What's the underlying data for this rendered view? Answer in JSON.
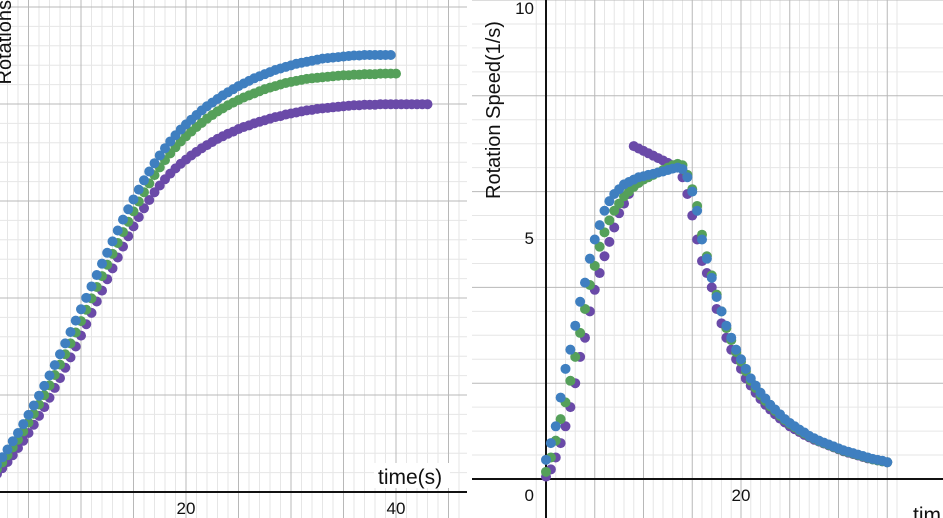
{
  "chart_data": [
    {
      "type": "scatter",
      "ylabel": "Rotations",
      "xlabel": "time(s)",
      "x_ticks": [
        "20",
        "40"
      ],
      "xlim": [
        -1,
        46
      ],
      "ylim": [
        0,
        10
      ],
      "grid": true,
      "series": [
        {
          "color": "#3f7fc0",
          "x": [
            0,
            0.5,
            1,
            1.5,
            2,
            2.5,
            3,
            3.5,
            4,
            4.5,
            5,
            5.5,
            6,
            6.5,
            7,
            7.5,
            8,
            8.5,
            9,
            9.5,
            10,
            10.5,
            11,
            11.5,
            12,
            12.5,
            13,
            13.5,
            14,
            14.5,
            15,
            15.5,
            16,
            16.5,
            17,
            17.5,
            18,
            18.5,
            19,
            19.5,
            20,
            20.5,
            21,
            21.5,
            22,
            22.5,
            23,
            23.5,
            24,
            24.5,
            25,
            25.5,
            26,
            26.5,
            27,
            27.5,
            28,
            28.5,
            29,
            29.5,
            30,
            30.5,
            31,
            31.5,
            32,
            32.5,
            33,
            33.5,
            34,
            34.5,
            35,
            35.5,
            36,
            36.5,
            37,
            37.5,
            38,
            38.5,
            39,
            39.5
          ],
          "y": [
            0.03,
            0.14,
            0.26,
            0.39,
            0.53,
            0.67,
            0.82,
            0.98,
            1.14,
            1.31,
            1.49,
            1.67,
            1.86,
            2.05,
            2.25,
            2.45,
            2.66,
            2.87,
            3.09,
            3.31,
            3.53,
            3.75,
            3.97,
            4.19,
            4.41,
            4.62,
            4.84,
            5.05,
            5.26,
            5.46,
            5.65,
            5.84,
            6.02,
            6.19,
            6.35,
            6.5,
            6.64,
            6.77,
            6.89,
            7.0,
            7.1,
            7.19,
            7.28,
            7.37,
            7.45,
            7.52,
            7.59,
            7.66,
            7.72,
            7.78,
            7.84,
            7.89,
            7.94,
            7.99,
            8.03,
            8.07,
            8.11,
            8.15,
            8.18,
            8.21,
            8.24,
            8.27,
            8.29,
            8.31,
            8.33,
            8.35,
            8.37,
            8.38,
            8.39,
            8.4,
            8.41,
            8.42,
            8.43,
            8.43,
            8.44,
            8.44,
            8.44,
            8.44,
            8.44,
            8.44
          ]
        },
        {
          "color": "#55a05a",
          "x": [
            0,
            0.5,
            1,
            1.5,
            2,
            2.5,
            3,
            3.5,
            4,
            4.5,
            5,
            5.5,
            6,
            6.5,
            7,
            7.5,
            8,
            8.5,
            9,
            9.5,
            10,
            10.5,
            11,
            11.5,
            12,
            12.5,
            13,
            13.5,
            14,
            14.5,
            15,
            15.5,
            16,
            16.5,
            17,
            17.5,
            18,
            18.5,
            19,
            19.5,
            20,
            20.5,
            21,
            21.5,
            22,
            22.5,
            23,
            23.5,
            24,
            24.5,
            25,
            25.5,
            26,
            26.5,
            27,
            27.5,
            28,
            28.5,
            29,
            29.5,
            30,
            30.5,
            31,
            31.5,
            32,
            32.5,
            33,
            33.5,
            34,
            34.5,
            35,
            35.5,
            36,
            36.5,
            37,
            37.5,
            38,
            38.5,
            39,
            39.5,
            40
          ],
          "y": [
            0.02,
            0.11,
            0.21,
            0.32,
            0.44,
            0.57,
            0.71,
            0.86,
            1.01,
            1.17,
            1.34,
            1.51,
            1.69,
            1.87,
            2.06,
            2.26,
            2.46,
            2.66,
            2.87,
            3.08,
            3.3,
            3.52,
            3.74,
            3.96,
            4.17,
            4.39,
            4.6,
            4.81,
            5.02,
            5.22,
            5.42,
            5.61,
            5.79,
            5.96,
            6.12,
            6.27,
            6.41,
            6.54,
            6.66,
            6.77,
            6.87,
            6.96,
            7.05,
            7.13,
            7.21,
            7.28,
            7.35,
            7.41,
            7.47,
            7.52,
            7.57,
            7.62,
            7.66,
            7.7,
            7.74,
            7.78,
            7.81,
            7.84,
            7.87,
            7.9,
            7.92,
            7.94,
            7.96,
            7.98,
            7.99,
            8.0,
            8.01,
            8.02,
            8.03,
            8.04,
            8.05,
            8.05,
            8.06,
            8.06,
            8.07,
            8.07,
            8.07,
            8.08,
            8.08,
            8.08,
            8.08
          ]
        },
        {
          "color": "#6a4aa8",
          "x": [
            0,
            0.5,
            1,
            1.5,
            2,
            2.5,
            3,
            3.5,
            4,
            4.5,
            5,
            5.5,
            6,
            6.5,
            7,
            7.5,
            8,
            8.5,
            9,
            9.5,
            10,
            10.5,
            11,
            11.5,
            12,
            12.5,
            13,
            13.5,
            14,
            14.5,
            15,
            15.5,
            16,
            16.5,
            17,
            17.5,
            18,
            18.5,
            19,
            19.5,
            20,
            20.5,
            21,
            21.5,
            22,
            22.5,
            23,
            23.5,
            24,
            24.5,
            25,
            25.5,
            26,
            26.5,
            27,
            27.5,
            28,
            28.5,
            29,
            29.5,
            30,
            30.5,
            31,
            31.5,
            32,
            32.5,
            33,
            33.5,
            34,
            34.5,
            35,
            35.5,
            36,
            36.5,
            37,
            37.5,
            38,
            38.5,
            39,
            39.5,
            40,
            40.5,
            41,
            41.5,
            42,
            42.5,
            43
          ],
          "y": [
            0.01,
            0.08,
            0.16,
            0.25,
            0.35,
            0.46,
            0.58,
            0.71,
            0.85,
            0.99,
            1.14,
            1.3,
            1.47,
            1.64,
            1.82,
            2.01,
            2.2,
            2.4,
            2.6,
            2.81,
            3.02,
            3.24,
            3.46,
            3.68,
            3.89,
            4.11,
            4.32,
            4.53,
            4.74,
            4.94,
            5.13,
            5.31,
            5.48,
            5.64,
            5.79,
            5.92,
            6.04,
            6.15,
            6.25,
            6.34,
            6.42,
            6.5,
            6.57,
            6.64,
            6.7,
            6.76,
            6.82,
            6.87,
            6.92,
            6.96,
            7.01,
            7.05,
            7.08,
            7.12,
            7.15,
            7.18,
            7.21,
            7.24,
            7.26,
            7.29,
            7.31,
            7.33,
            7.35,
            7.37,
            7.38,
            7.4,
            7.41,
            7.42,
            7.43,
            7.44,
            7.45,
            7.46,
            7.47,
            7.47,
            7.48,
            7.48,
            7.48,
            7.49,
            7.49,
            7.49,
            7.49,
            7.49,
            7.49,
            7.49,
            7.49,
            7.49,
            7.49
          ]
        }
      ]
    },
    {
      "type": "scatter",
      "ylabel": "Rotation Speed(1/s)",
      "xlabel": "tim",
      "x_ticks": [
        "0",
        "20"
      ],
      "y_ticks": [
        "10",
        "5"
      ],
      "xlim": [
        -1.5,
        36
      ],
      "ylim": [
        0,
        10
      ],
      "grid": true,
      "series": [
        {
          "color": "#3f7fc0",
          "x": [
            0,
            0.5,
            1,
            1.5,
            2,
            2.5,
            3,
            3.5,
            4,
            4.5,
            5,
            5.5,
            6,
            6.5,
            7,
            7.5,
            8,
            8.5,
            9,
            9.5,
            10,
            10.5,
            11,
            11.5,
            12,
            12.5,
            13,
            13.5,
            14,
            14.5,
            15,
            15.5,
            16,
            16.5,
            17,
            17.5,
            18,
            18.5,
            19,
            19.5,
            20,
            20.5,
            21,
            21.5,
            22,
            22.5,
            23,
            23.5,
            24,
            24.5,
            25,
            25.5,
            26,
            26.5,
            27,
            27.5,
            28,
            28.5,
            29,
            29.5,
            30,
            30.5,
            31,
            31.5,
            32,
            32.5,
            33,
            33.5,
            34,
            34.5,
            35
          ],
          "y": [
            0.4,
            0.75,
            1.1,
            1.7,
            2.3,
            2.7,
            3.2,
            3.7,
            4.1,
            4.6,
            5.0,
            5.3,
            5.6,
            5.8,
            5.95,
            6.05,
            6.15,
            6.2,
            6.25,
            6.3,
            6.32,
            6.35,
            6.37,
            6.4,
            6.42,
            6.45,
            6.48,
            6.5,
            6.47,
            6.3,
            6.0,
            5.6,
            5.0,
            4.6,
            4.2,
            3.8,
            3.5,
            3.2,
            2.95,
            2.7,
            2.5,
            2.3,
            2.1,
            1.95,
            1.8,
            1.68,
            1.55,
            1.45,
            1.35,
            1.25,
            1.17,
            1.1,
            1.03,
            0.97,
            0.9,
            0.85,
            0.8,
            0.76,
            0.72,
            0.68,
            0.64,
            0.6,
            0.57,
            0.54,
            0.51,
            0.48,
            0.45,
            0.42,
            0.4,
            0.38,
            0.35
          ]
        },
        {
          "color": "#55a05a",
          "x": [
            0,
            0.5,
            1,
            1.5,
            2,
            2.5,
            3,
            3.5,
            4,
            4.5,
            5,
            5.5,
            6,
            6.5,
            7,
            7.5,
            8,
            8.5,
            9,
            9.5,
            10,
            10.5,
            11,
            11.5,
            12,
            12.5,
            13,
            13.5,
            14,
            14.5,
            15,
            15.5,
            16,
            16.5,
            17,
            17.5,
            18,
            18.5,
            19,
            19.5,
            20,
            20.5,
            21,
            21.5,
            22,
            22.5,
            23,
            23.5,
            24,
            24.5,
            25,
            25.5,
            26,
            26.5,
            27,
            27.5,
            28,
            28.5,
            29,
            29.5,
            30,
            30.5,
            31,
            31.5,
            32,
            32.5,
            33,
            33.5,
            34,
            34.5,
            35
          ],
          "y": [
            0.15,
            0.45,
            0.8,
            1.25,
            1.6,
            2.05,
            2.55,
            3.05,
            3.55,
            4.05,
            4.45,
            4.85,
            5.15,
            5.4,
            5.6,
            5.75,
            5.9,
            6.0,
            6.1,
            6.18,
            6.25,
            6.3,
            6.35,
            6.4,
            6.45,
            6.5,
            6.55,
            6.58,
            6.55,
            6.35,
            6.05,
            5.7,
            5.1,
            4.65,
            4.25,
            3.85,
            3.5,
            3.15,
            2.9,
            2.65,
            2.45,
            2.25,
            2.05,
            1.9,
            1.75,
            1.63,
            1.52,
            1.42,
            1.32,
            1.23,
            1.15,
            1.08,
            1.01,
            0.95,
            0.89,
            0.84,
            0.79,
            0.75,
            0.71,
            0.67,
            0.63,
            0.59,
            0.56,
            0.53,
            0.5,
            0.47,
            0.44,
            0.41,
            0.39,
            0.37,
            0.35
          ]
        },
        {
          "color": "#6a4aa8",
          "x": [
            0,
            0.5,
            1,
            1.5,
            2,
            2.5,
            3,
            3.5,
            4,
            4.5,
            5,
            5.5,
            6,
            6.5,
            7,
            7.5,
            8,
            8.5,
            9,
            9.5,
            10,
            10.5,
            11,
            11.5,
            12,
            12.5,
            13,
            13.5,
            14,
            14.5,
            15,
            15.5,
            16,
            16.5,
            17,
            17.5,
            18,
            18.5,
            19,
            19.5,
            20,
            20.5,
            21,
            21.5,
            22,
            22.5,
            23,
            23.5,
            24,
            24.5,
            25,
            25.5,
            26,
            26.5,
            27,
            27.5,
            28,
            28.5,
            29,
            29.5,
            30,
            30.5,
            31,
            31.5,
            32,
            32.5,
            33,
            33.5,
            34,
            34.5,
            35
          ],
          "y": [
            0.05,
            0.2,
            0.45,
            0.75,
            1.1,
            1.5,
            2.0,
            2.55,
            2.95,
            3.5,
            3.95,
            4.3,
            4.65,
            4.95,
            5.25,
            5.55,
            5.75,
            5.95,
            6.95,
            6.9,
            6.85,
            6.8,
            6.75,
            6.7,
            6.65,
            6.6,
            6.55,
            6.5,
            6.3,
            5.95,
            5.5,
            5.0,
            4.55,
            4.3,
            4.0,
            3.55,
            3.25,
            2.95,
            2.7,
            2.5,
            2.3,
            2.1,
            1.95,
            1.8,
            1.67,
            1.55,
            1.45,
            1.35,
            1.26,
            1.18,
            1.1,
            1.04,
            0.98,
            0.92,
            0.87,
            0.82,
            0.78,
            0.74,
            0.7,
            0.66,
            0.62,
            0.58,
            0.55,
            0.52,
            0.49,
            0.46,
            0.43,
            0.41,
            0.39,
            0.37,
            0.35
          ]
        }
      ]
    }
  ]
}
